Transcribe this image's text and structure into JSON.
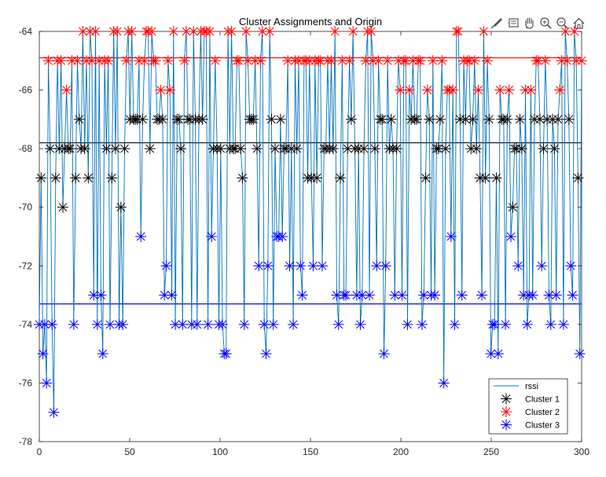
{
  "chart_data": {
    "type": "scatter",
    "title": "Cluster Assignments and Origin",
    "xlabel": "",
    "ylabel": "",
    "xlim": [
      0,
      300
    ],
    "ylim": [
      -78,
      -64
    ],
    "xticks": [
      0,
      50,
      100,
      150,
      200,
      250,
      300
    ],
    "yticks": [
      -78,
      -76,
      -74,
      -72,
      -70,
      -68,
      -66,
      -64
    ],
    "legend_position": "bottom-right",
    "grid": false,
    "line_series": {
      "name": "rssi",
      "color": "#0072BD",
      "y": [
        -74,
        -69,
        -75,
        -74,
        -76,
        -65,
        -68,
        -74,
        -77,
        -69,
        -65,
        -68,
        -65,
        -70,
        -68,
        -66,
        -68,
        -68,
        -65,
        -74,
        -69,
        -65,
        -67,
        -68,
        -64,
        -68,
        -65,
        -69,
        -64,
        -65,
        -73,
        -64,
        -74,
        -65,
        -73,
        -75,
        -65,
        -68,
        -65,
        -74,
        -69,
        -64,
        -68,
        -64,
        -74,
        -70,
        -74,
        -68,
        -65,
        -64,
        -67,
        -64,
        -67,
        -67,
        -67,
        -65,
        -71,
        -67,
        -65,
        -64,
        -64,
        -68,
        -64,
        -65,
        -65,
        -67,
        -67,
        -66,
        -67,
        -73,
        -72,
        -65,
        -66,
        -73,
        -64,
        -74,
        -67,
        -67,
        -68,
        -74,
        -65,
        -64,
        -67,
        -67,
        -74,
        -64,
        -67,
        -74,
        -67,
        -64,
        -67,
        -64,
        -64,
        -74,
        -64,
        -71,
        -68,
        -65,
        -68,
        -74,
        -68,
        -74,
        -75,
        -75,
        -64,
        -68,
        -64,
        -68,
        -68,
        -65,
        -65,
        -68,
        -69,
        -74,
        -64,
        -65,
        -67,
        -67,
        -67,
        -65,
        -68,
        -72,
        -65,
        -64,
        -74,
        -75,
        -72,
        -64,
        -67,
        -74,
        -68,
        -71,
        -71,
        -67,
        -71,
        -68,
        -68,
        -65,
        -72,
        -68,
        -74,
        -65,
        -68,
        -65,
        -72,
        -73,
        -65,
        -65,
        -69,
        -65,
        -69,
        -72,
        -65,
        -69,
        -65,
        -65,
        -72,
        -68,
        -68,
        -65,
        -68,
        -65,
        -68,
        -64,
        -73,
        -74,
        -69,
        -65,
        -73,
        -73,
        -68,
        -65,
        -67,
        -64,
        -68,
        -73,
        -68,
        -74,
        -73,
        -68,
        -65,
        -64,
        -73,
        -64,
        -65,
        -68,
        -72,
        -65,
        -67,
        -67,
        -75,
        -72,
        -65,
        -68,
        -67,
        -68,
        -73,
        -68,
        -65,
        -66,
        -73,
        -65,
        -65,
        -74,
        -66,
        -67,
        -65,
        -67,
        -67,
        -65,
        -65,
        -74,
        -73,
        -69,
        -66,
        -67,
        -73,
        -65,
        -73,
        -68,
        -68,
        -67,
        -65,
        -76,
        -68,
        -66,
        -66,
        -71,
        -66,
        -74,
        -64,
        -64,
        -67,
        -73,
        -65,
        -67,
        -65,
        -65,
        -68,
        -67,
        -65,
        -68,
        -66,
        -69,
        -73,
        -64,
        -69,
        -65,
        -67,
        -75,
        -74,
        -74,
        -69,
        -75,
        -66,
        -67,
        -67,
        -74,
        -67,
        -66,
        -71,
        -70,
        -68,
        -68,
        -72,
        -67,
        -68,
        -73,
        -66,
        -74,
        -73,
        -66,
        -73,
        -67,
        -65,
        -65,
        -67,
        -72,
        -68,
        -65,
        -67,
        -73,
        -74,
        -67,
        -68,
        -73,
        -67,
        -66,
        -65,
        -74,
        -64,
        -65,
        -67,
        -72,
        -73,
        -64,
        -65,
        -69,
        -75,
        -65
      ]
    },
    "cluster_series": [
      {
        "name": "Cluster 1",
        "color": "#000000",
        "range": [
          -70,
          -67
        ]
      },
      {
        "name": "Cluster 2",
        "color": "#ff0000",
        "range": [
          -66,
          -64
        ]
      },
      {
        "name": "Cluster 3",
        "color": "#0000ff",
        "range": [
          -77,
          -71
        ]
      }
    ],
    "origin_lines": [
      {
        "series": "Cluster 1",
        "y": -67.8,
        "color": "#000000"
      },
      {
        "series": "Cluster 2",
        "y": -64.9,
        "color": "#ff0000"
      },
      {
        "series": "Cluster 3",
        "y": -73.3,
        "color": "#0000ff"
      }
    ],
    "legend": [
      "rssi",
      "Cluster 1",
      "Cluster 2",
      "Cluster 3"
    ]
  },
  "toolbar": {
    "buttons": [
      {
        "name": "brush-icon"
      },
      {
        "name": "datatip-icon"
      },
      {
        "name": "pan-hand-icon"
      },
      {
        "name": "zoom-in-icon"
      },
      {
        "name": "zoom-out-icon"
      },
      {
        "name": "home-icon"
      }
    ]
  }
}
